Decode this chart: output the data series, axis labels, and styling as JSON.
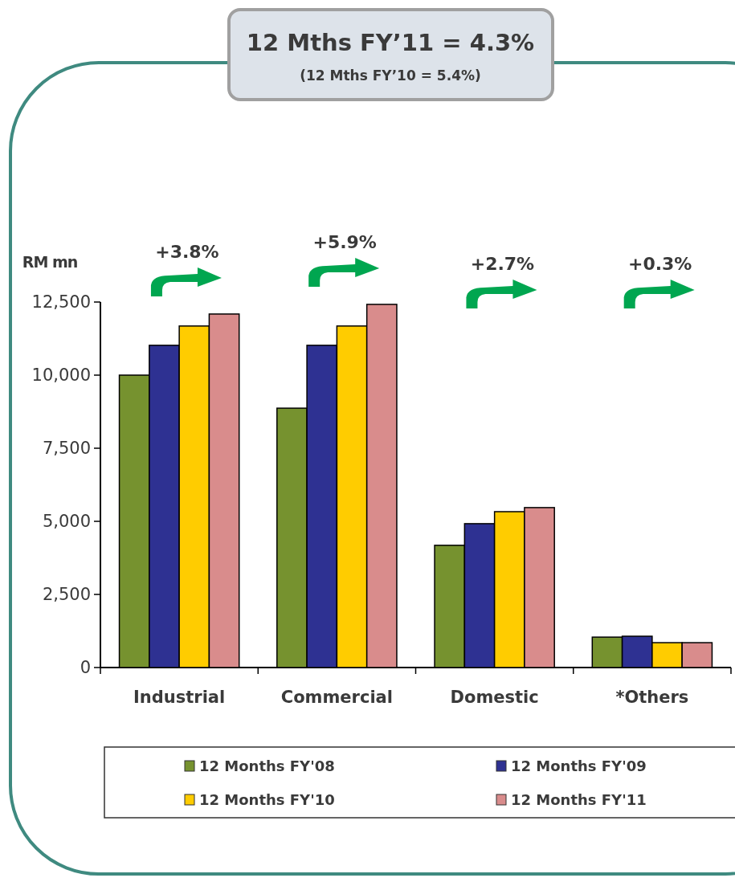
{
  "chart_data": {
    "type": "bar",
    "title": "12 Mths FY’11 = 4.3%",
    "subtitle": "(12 Mths FY’10 = 5.4%)",
    "ylabel": "RM mn",
    "categories": [
      "Industrial",
      "Commercial",
      "Domestic",
      "*Others"
    ],
    "series": [
      {
        "name": "12 Months FY'08",
        "color": "#76922f",
        "values": [
          10000,
          8870,
          4180,
          1040
        ]
      },
      {
        "name": "12 Months FY'09",
        "color": "#2e3192",
        "values": [
          11020,
          11020,
          4920,
          1070
        ]
      },
      {
        "name": "12 Months FY'10",
        "color": "#ffcc00",
        "values": [
          11680,
          11680,
          5330,
          850
        ]
      },
      {
        "name": "12 Months FY'11",
        "color": "#d98c8c",
        "values": [
          12090,
          12420,
          5470,
          850
        ]
      }
    ],
    "ylim": [
      0,
      12500
    ],
    "yticks": [
      0,
      {
        "value": 2500,
        "label": "2,500"
      },
      {
        "value": 5000,
        "label": "5,000"
      },
      {
        "value": 7500,
        "label": "7,500"
      },
      {
        "value": 10000,
        "label": "10,000"
      },
      {
        "value": 12500,
        "label": "12,500"
      }
    ],
    "annotations": [
      "+3.8%",
      "+5.9%",
      "+2.7%",
      "+0.3%"
    ],
    "legend": "bottom",
    "grid": false
  }
}
